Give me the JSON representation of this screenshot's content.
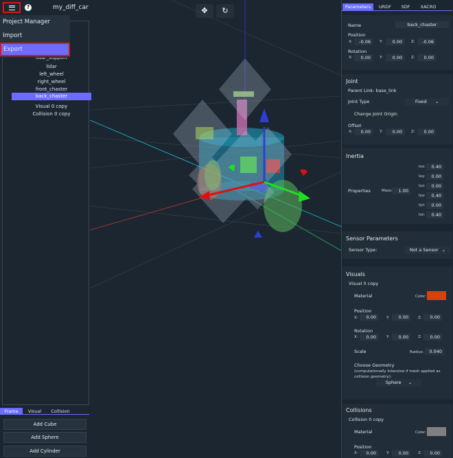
{
  "app": {
    "project_title": "my_diff_car",
    "help_glyph": "?"
  },
  "toolbar": {
    "menu_icon": "hamburger-icon",
    "move_glyph": "✥",
    "refresh_glyph": "↻"
  },
  "menu": {
    "items": [
      "Project Manager",
      "Import",
      "Export"
    ],
    "highlight_color": "#e01414",
    "selected": "Export"
  },
  "tree": {
    "items": [
      "lidar_support",
      "lidar",
      "left_wheel",
      "right_wheel",
      "front_chaster",
      "back_chaster",
      "Visual 0 copy",
      "Collision 0 copy"
    ],
    "selected": "back_chaster"
  },
  "bottom_tabs": [
    "Frame",
    "Visual",
    "Collision"
  ],
  "add_buttons": [
    "Add Cube",
    "Add Sphere",
    "Add Cylinder"
  ],
  "right_tabs": [
    "Parameters",
    "URDF",
    "SDF",
    "XACRO"
  ],
  "params": {
    "name_label": "Name",
    "name_value": "back_chaster",
    "position_label": "Position",
    "rotation_label": "Rotation",
    "pos": {
      "x": "-0.06",
      "y": "0.00",
      "z": "-0.06"
    },
    "rot": {
      "x": "0.00",
      "y": "0.00",
      "z": "0.00"
    }
  },
  "axis_labels": {
    "x": "X:",
    "y": "Y:",
    "z": "Z:"
  },
  "joint": {
    "title": "Joint",
    "parent_link": "Parent Link: base_link",
    "type_label": "Joint Type",
    "type_value": "Fixed",
    "change_origin": "Change Joint Origin",
    "offset_label": "Offset",
    "offset": {
      "x": "0.00",
      "y": "0.00",
      "z": "0.00"
    }
  },
  "inertia": {
    "title": "Inertia",
    "properties_label": "Properties",
    "mass_label": "Mass:",
    "mass_value": "1.00",
    "keys": [
      "Ixx:",
      "Ixy:",
      "Ixz:",
      "Iyy:",
      "Iyz:",
      "Izz:"
    ],
    "values": [
      "0.40",
      "0.00",
      "0.00",
      "0.40",
      "0.00",
      "0.40"
    ]
  },
  "sensor": {
    "title": "Sensor Parameters",
    "type_label": "Sensor Type:",
    "type_value": "Not a Sensor"
  },
  "visuals": {
    "title": "Visuals",
    "subtitle": "Visual 0 copy",
    "material_label": "Material",
    "color_label": "Color:",
    "color_value": "#d9400f",
    "position_label": "Position",
    "pos": {
      "x": "0.00",
      "y": "0.00",
      "z": "0.00"
    },
    "rotation_label": "Rotation",
    "rot": {
      "x": "0.00",
      "y": "0.00",
      "z": "0.00"
    },
    "scale_label": "Scale",
    "radius_label": "Radius:",
    "radius_value": "0.040",
    "geometry_title": "Choose Geometry",
    "geometry_note": "(computationally intensive if mesh applied as collision geometry):",
    "geometry_value": "Sphere"
  },
  "collisions": {
    "title": "Collisions",
    "subtitle": "Collision 0 copy",
    "material_label": "Material",
    "color_label": "Color:",
    "color_value": "#808080",
    "position_label": "Position",
    "pos": {
      "x": "0.00",
      "y": "0.00",
      "z": "0.00"
    }
  },
  "colors": {
    "accent": "#6a6dff",
    "background": "#1b2631",
    "panel": "#212d38"
  }
}
